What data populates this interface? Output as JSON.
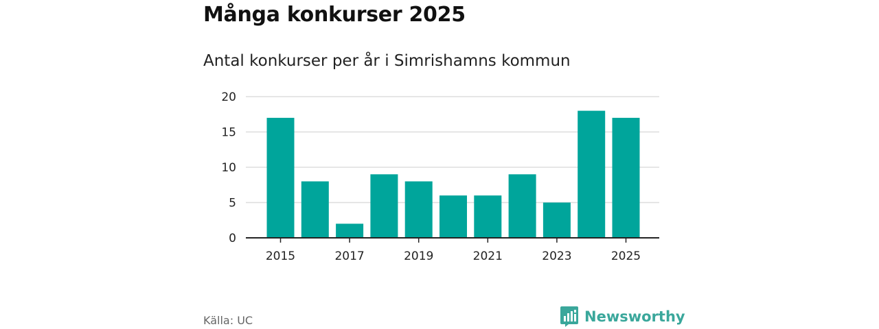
{
  "header": {
    "title": "Många konkurser 2025",
    "subtitle": "Antal konkurser per år i Simrishamns kommun"
  },
  "footer": {
    "source": "Källa: UC",
    "brand": "Newsworthy",
    "brand_icon": "newsworthy-logo-icon"
  },
  "colors": {
    "bar": "#00a59b",
    "grid": "#dddddd",
    "axis": "#222222",
    "brand": "#3aa79b"
  },
  "chart_data": {
    "type": "bar",
    "categories": [
      "2015",
      "2016",
      "2017",
      "2018",
      "2019",
      "2020",
      "2021",
      "2022",
      "2023",
      "2024",
      "2025"
    ],
    "values": [
      17,
      8,
      2,
      9,
      8,
      6,
      6,
      9,
      5,
      18,
      17
    ],
    "x_tick_labels": [
      "2015",
      "2017",
      "2019",
      "2021",
      "2023",
      "2025"
    ],
    "y_ticks": [
      0,
      5,
      10,
      15,
      20
    ],
    "ylim": [
      0,
      20
    ],
    "title": "Många konkurser 2025",
    "subtitle": "Antal konkurser per år i Simrishamns kommun",
    "xlabel": "",
    "ylabel": "",
    "grid": true,
    "legend": "none"
  }
}
